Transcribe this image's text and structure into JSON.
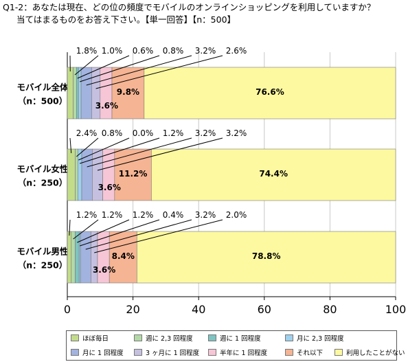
{
  "title": {
    "line1": "Q1-2：あなたは現在、どの位の頻度でモバイルのオンラインショッピングを利用していますか？",
    "line2": "当てはまるものをお答え下さい。【単一回答】【n：500】"
  },
  "chart_data": {
    "type": "bar",
    "orientation": "horizontal",
    "stacked": true,
    "xlim": [
      0,
      100
    ],
    "xticks": [
      "0",
      "20",
      "40",
      "60",
      "80",
      "100"
    ],
    "categories": [
      {
        "label1": "モバイル全体",
        "label2": "（n：500）"
      },
      {
        "label1": "モバイル女性",
        "label2": "（n：250）"
      },
      {
        "label1": "モバイル男性",
        "label2": "（n：250）"
      }
    ],
    "series": [
      {
        "name": "ほぼ毎日",
        "color": "#c3dc8a",
        "values": [
          1.8,
          2.4,
          1.2
        ]
      },
      {
        "name": "週に 2,3 回程度",
        "color": "#b3d9a6",
        "values": [
          1.0,
          0.8,
          1.2
        ]
      },
      {
        "name": "週に 1 回程度",
        "color": "#7ec4c1",
        "values": [
          0.6,
          0.0,
          1.2
        ]
      },
      {
        "name": "月に 2,3 回程度",
        "color": "#9fd0ee",
        "values": [
          0.8,
          1.2,
          0.4
        ]
      },
      {
        "name": "月に 1 回程度",
        "color": "#a3b3df",
        "values": [
          3.2,
          3.2,
          3.2
        ]
      },
      {
        "name": "3 ヶ月に 1 回程度",
        "color": "#c6c0e0",
        "values": [
          2.6,
          3.2,
          2.0
        ]
      },
      {
        "name": "半年に 1 回程度",
        "color": "#f6c6d6",
        "values": [
          3.6,
          3.6,
          3.6
        ]
      },
      {
        "name": "それ以下",
        "color": "#f5b493",
        "values": [
          9.8,
          11.2,
          8.4
        ]
      },
      {
        "name": "利用したことがない",
        "color": "#fdf9a0",
        "values": [
          76.6,
          74.4,
          78.8
        ]
      }
    ],
    "value_labels": [
      [
        "1.8%",
        "1.0%",
        "0.6%",
        "0.8%",
        "3.2%",
        "2.6%",
        "3.6%",
        "9.8%",
        "76.6%"
      ],
      [
        "2.4%",
        "0.8%",
        "0.0%",
        "1.2%",
        "3.2%",
        "3.2%",
        "3.6%",
        "11.2%",
        "74.4%"
      ],
      [
        "1.2%",
        "1.2%",
        "1.2%",
        "0.4%",
        "3.2%",
        "2.0%",
        "3.6%",
        "8.4%",
        "78.8%"
      ]
    ]
  }
}
